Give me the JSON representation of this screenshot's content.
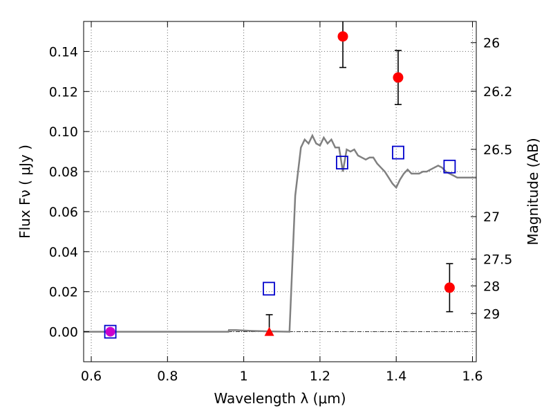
{
  "chart_data": {
    "type": "scatter",
    "xlabel": "Wavelength  λ (μm)",
    "ylabel": "Flux  Fν  ( μJy )",
    "ylabel_right": "Magnitude (AB)",
    "xlim": [
      0.58,
      1.61
    ],
    "ylim": [
      -0.015,
      0.155
    ],
    "x_ticks": [
      0.6,
      0.8,
      1.0,
      1.2,
      1.4,
      1.6
    ],
    "x_tick_labels": [
      "0.6",
      "0.8",
      "1",
      "1.2",
      "1.4",
      "1.6"
    ],
    "y_ticks": [
      0.0,
      0.02,
      0.04,
      0.06,
      0.08,
      0.1,
      0.12,
      0.14
    ],
    "y_tick_labels": [
      "0.00",
      "0.02",
      "0.04",
      "0.06",
      "0.08",
      "0.10",
      "0.12",
      "0.14"
    ],
    "right_ticks": [
      {
        "label": "26",
        "flux": 0.1444
      },
      {
        "label": "26.2",
        "flux": 0.1201
      },
      {
        "label": "26.5",
        "flux": 0.0911
      },
      {
        "label": "27",
        "flux": 0.0575
      },
      {
        "label": "27.5",
        "flux": 0.0363
      },
      {
        "label": "28",
        "flux": 0.0229
      },
      {
        "label": "29",
        "flux": 0.0091
      }
    ],
    "grid": true,
    "colors": {
      "model": "#808080",
      "observed": "#ff0000",
      "model_photometry": "#0000cc",
      "lower_limit": "#cc00cc",
      "errorbar": "#000000"
    },
    "series": [
      {
        "type": "line",
        "x": [
          0.58,
          0.96,
          0.961,
          0.98,
          1.0,
          1.02,
          1.06,
          1.12,
          1.135,
          1.15,
          1.16,
          1.17,
          1.18,
          1.19,
          1.2,
          1.21,
          1.22,
          1.23,
          1.24,
          1.25,
          1.26,
          1.27,
          1.28,
          1.29,
          1.3,
          1.31,
          1.32,
          1.33,
          1.34,
          1.35,
          1.36,
          1.37,
          1.38,
          1.39,
          1.4,
          1.41,
          1.42,
          1.43,
          1.44,
          1.45,
          1.46,
          1.47,
          1.48,
          1.49,
          1.5,
          1.51,
          1.52,
          1.53,
          1.54,
          1.55,
          1.56,
          1.57,
          1.58,
          1.59,
          1.6,
          1.61
        ],
        "y": [
          0.0,
          0.0,
          0.0008,
          0.0008,
          0.0006,
          0.0004,
          0.0002,
          0.0,
          0.068,
          0.092,
          0.096,
          0.094,
          0.098,
          0.094,
          0.093,
          0.097,
          0.094,
          0.096,
          0.092,
          0.092,
          0.08,
          0.091,
          0.09,
          0.091,
          0.088,
          0.087,
          0.086,
          0.087,
          0.087,
          0.084,
          0.082,
          0.08,
          0.077,
          0.074,
          0.072,
          0.076,
          0.079,
          0.081,
          0.079,
          0.079,
          0.079,
          0.08,
          0.08,
          0.081,
          0.082,
          0.083,
          0.082,
          0.08,
          0.079,
          0.078,
          0.077,
          0.077,
          0.077,
          0.077,
          0.077,
          0.077
        ]
      },
      {
        "type": "scatter",
        "marker": "circle",
        "x": [
          1.26,
          1.405,
          1.54
        ],
        "y": [
          0.1475,
          0.127,
          0.022
        ],
        "yerr": [
          0.0155,
          0.0135,
          0.012
        ]
      },
      {
        "type": "scatter",
        "marker": "triangle",
        "x": [
          1.067
        ],
        "y": [
          0.0
        ],
        "yerr_upper": [
          0.0085
        ]
      },
      {
        "type": "scatter",
        "marker": "circle",
        "x": [
          0.65
        ],
        "y": [
          0.0
        ]
      },
      {
        "type": "scatter",
        "marker": "open-square",
        "x": [
          0.65,
          1.066,
          1.258,
          1.405,
          1.54
        ],
        "y": [
          0.0,
          0.0215,
          0.0845,
          0.0895,
          0.0825
        ]
      }
    ]
  }
}
